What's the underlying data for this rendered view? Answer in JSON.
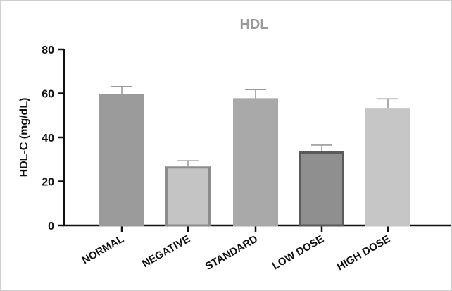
{
  "chart_data": {
    "type": "bar",
    "title": "HDL",
    "xlabel": "",
    "ylabel": "HDL-C (mg/dL)",
    "ylim": [
      0,
      80
    ],
    "yticks": [
      0,
      20,
      40,
      60,
      80
    ],
    "grid": false,
    "categories": [
      "NORMAL",
      "NEGATIVE",
      "STANDARD",
      "LOW DOSE",
      "HIGH DOSE"
    ],
    "values": [
      59.8,
      26.8,
      57.8,
      33.6,
      53.4
    ],
    "errors": [
      3.3,
      2.6,
      3.9,
      2.9,
      4.1
    ],
    "fill_colors": [
      "#9b9b9b",
      "#c4c4c4",
      "#a9a9a9",
      "#8f8f8f",
      "#c6c6c6"
    ],
    "stroke_colors": [
      "#9b9b9b",
      "#8c8c8c",
      "#a9a9a9",
      "#5a5a5a",
      "#c6c6c6"
    ]
  }
}
